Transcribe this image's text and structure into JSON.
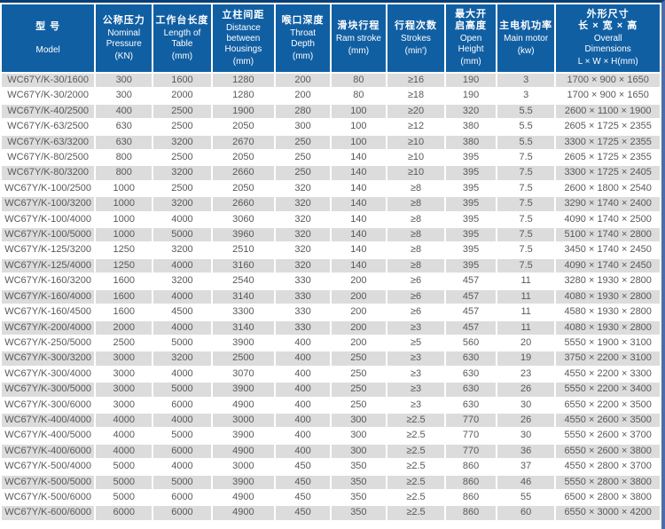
{
  "colors": {
    "header_bg": "#115fa3",
    "header_text": "#ffffff",
    "top_line": "#0a3e71",
    "right_border": "#4a6fa8",
    "stripe_bg": "#dcdcdc",
    "row_bg": "#ffffff",
    "body_text": "#58595b"
  },
  "table": {
    "columns": [
      {
        "id": "model",
        "zh": "型 号",
        "zh2": "",
        "en": "Model",
        "unit": ""
      },
      {
        "id": "pressure",
        "zh": "公称压力",
        "zh2": "",
        "en": "Nominal\nPressure",
        "unit": "(KN)"
      },
      {
        "id": "table-length",
        "zh": "工作台长度",
        "zh2": "",
        "en": "Length of\nTable",
        "unit": "(mm)"
      },
      {
        "id": "housing-distance",
        "zh": "立柱间距",
        "zh2": "",
        "en": "Distance\nbetween\nHousings",
        "unit": "(mm)"
      },
      {
        "id": "throat-depth",
        "zh": "喉口深度",
        "zh2": "",
        "en": "Throat\nDepth",
        "unit": "(mm)"
      },
      {
        "id": "ram-stroke",
        "zh": "滑块行程",
        "zh2": "",
        "en": "Ram stroke",
        "unit": "(mm)"
      },
      {
        "id": "strokes",
        "zh": "行程次数",
        "zh2": "",
        "en": "Strokes",
        "unit": "(min')"
      },
      {
        "id": "open-height",
        "zh": "最大开\n启高度",
        "zh2": "",
        "en": "Open\nHeight",
        "unit": "(mm)"
      },
      {
        "id": "main-motor",
        "zh": "主电机功率",
        "zh2": "",
        "en": "Main motor",
        "unit": "(kw)"
      },
      {
        "id": "dimensions",
        "zh": "外形尺寸",
        "zh2": "长 × 宽 × 高",
        "en": "Overall\nDimensions",
        "unit": "L × W × H(mm)"
      }
    ],
    "rows": [
      [
        "WC67Y/K-30/1600",
        "300",
        "1600",
        "1280",
        "200",
        "80",
        "≥16",
        "190",
        "3",
        "1700 × 900 × 1650"
      ],
      [
        "WC67Y/K-30/2000",
        "300",
        "2000",
        "1280",
        "200",
        "80",
        "≥18",
        "190",
        "3",
        "1700 × 900 × 1650"
      ],
      [
        "WC67Y/K-40/2500",
        "400",
        "2500",
        "1900",
        "280",
        "100",
        "≥20",
        "320",
        "5.5",
        "2600 × 1100 × 1900"
      ],
      [
        "WC67Y/K-63/2500",
        "630",
        "2500",
        "2050",
        "300",
        "100",
        "≥12",
        "380",
        "5.5",
        "2605 × 1725 × 2355"
      ],
      [
        "WC67Y/K-63/3200",
        "630",
        "3200",
        "2670",
        "250",
        "100",
        "≥10",
        "380",
        "5.5",
        "3300 × 1725 × 2355"
      ],
      [
        "WC67Y/K-80/2500",
        "800",
        "2500",
        "2050",
        "250",
        "140",
        "≥10",
        "395",
        "7.5",
        "2605 × 1725 × 2355"
      ],
      [
        "WC67Y/K-80/3200",
        "800",
        "3200",
        "2660",
        "250",
        "140",
        "≥10",
        "395",
        "7.5",
        "3300 × 1725 × 2405"
      ],
      [
        "WC67Y/K-100/2500",
        "1000",
        "2500",
        "2050",
        "320",
        "140",
        "≥8",
        "395",
        "7.5",
        "2600 × 1800 × 2540"
      ],
      [
        "WC67Y/K-100/3200",
        "1000",
        "3200",
        "2660",
        "320",
        "140",
        "≥8",
        "395",
        "7.5",
        "3290 × 1740 × 2400"
      ],
      [
        "WC67Y/K-100/4000",
        "1000",
        "4000",
        "3060",
        "320",
        "140",
        "≥8",
        "395",
        "7.5",
        "4090 × 1740 × 2500"
      ],
      [
        "WC67Y/K-100/5000",
        "1000",
        "5000",
        "3960",
        "320",
        "140",
        "≥8",
        "395",
        "7.5",
        "5100 × 1740 × 2800"
      ],
      [
        "WC67Y/K-125/3200",
        "1250",
        "3200",
        "2510",
        "320",
        "140",
        "≥8",
        "395",
        "7.5",
        "3450 × 1740 × 2450"
      ],
      [
        "WC67Y/K-125/4000",
        "1250",
        "4000",
        "3160",
        "320",
        "140",
        "≥8",
        "395",
        "7.5",
        "4090 × 1740 × 2450"
      ],
      [
        "WC67Y/K-160/3200",
        "1600",
        "3200",
        "2540",
        "330",
        "200",
        "≥6",
        "457",
        "11",
        "3280 × 1930 × 2800"
      ],
      [
        "WC67Y/K-160/4000",
        "1600",
        "4000",
        "3140",
        "330",
        "200",
        "≥6",
        "457",
        "11",
        "4080 × 1930 × 2800"
      ],
      [
        "WC67Y/K-160/4500",
        "1600",
        "4500",
        "3300",
        "330",
        "200",
        "≥6",
        "457",
        "11",
        "4580 × 1930 × 2800"
      ],
      [
        "WC67Y/K-200/4000",
        "2000",
        "4000",
        "3140",
        "330",
        "200",
        "≥3",
        "457",
        "11",
        "4080 × 1930 × 2800"
      ],
      [
        "WC67Y/K-250/5000",
        "2500",
        "5000",
        "3900",
        "400",
        "200",
        "≥5",
        "560",
        "20",
        "5550 × 1900 × 3100"
      ],
      [
        "WC67Y/K-300/3200",
        "3000",
        "3200",
        "2500",
        "400",
        "250",
        "≥3",
        "630",
        "19",
        "3750 × 2200 × 3100"
      ],
      [
        "WC67Y/K-300/4000",
        "3000",
        "4000",
        "3070",
        "400",
        "250",
        "≥3",
        "630",
        "23",
        "4550 × 2200 × 3300"
      ],
      [
        "WC67Y/K-300/5000",
        "3000",
        "5000",
        "3900",
        "400",
        "250",
        "≥3",
        "630",
        "26",
        "5550 × 2200 × 3400"
      ],
      [
        "WC67Y/K-300/6000",
        "3000",
        "6000",
        "4900",
        "400",
        "250",
        "≥3",
        "630",
        "30",
        "6550 × 2200 × 3500"
      ],
      [
        "WC67Y/K-400/4000",
        "4000",
        "4000",
        "3000",
        "400",
        "300",
        "≥2.5",
        "770",
        "26",
        "4550 × 2600 × 3500"
      ],
      [
        "WC67Y/K-400/5000",
        "4000",
        "5000",
        "3900",
        "400",
        "300",
        "≥2.5",
        "770",
        "30",
        "5550 × 2600 × 3700"
      ],
      [
        "WC67Y/K-400/6000",
        "4000",
        "6000",
        "4900",
        "400",
        "300",
        "≥2.5",
        "770",
        "36",
        "6550 × 2600 × 3800"
      ],
      [
        "WC67Y/K-500/4000",
        "5000",
        "4000",
        "3000",
        "450",
        "350",
        "≥2.5",
        "860",
        "37",
        "4550 × 2800 × 3700"
      ],
      [
        "WC67Y/K-500/5000",
        "5000",
        "5000",
        "3900",
        "450",
        "350",
        "≥2.5",
        "860",
        "46",
        "5550 × 2800 × 3800"
      ],
      [
        "WC67Y/K-500/6000",
        "5000",
        "6000",
        "4900",
        "450",
        "350",
        "≥2.5",
        "860",
        "55",
        "6500 × 2800 × 3800"
      ],
      [
        "WC67Y/K-600/6000",
        "6000",
        "6000",
        "4900",
        "450",
        "350",
        "≥2.5",
        "860",
        "60",
        "6550 × 3000 × 4200"
      ]
    ]
  }
}
